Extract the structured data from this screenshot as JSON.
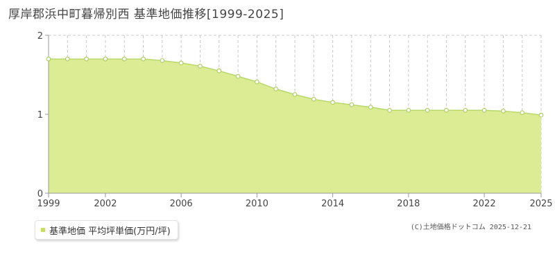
{
  "chart_data": {
    "type": "area",
    "title": "厚岸郡浜中町暮帰別西 基準地価推移[1999-2025]",
    "x": [
      1999,
      2000,
      2001,
      2002,
      2003,
      2004,
      2005,
      2006,
      2007,
      2008,
      2009,
      2010,
      2011,
      2012,
      2013,
      2014,
      2015,
      2016,
      2017,
      2018,
      2019,
      2020,
      2021,
      2022,
      2023,
      2024,
      2025
    ],
    "x_tick_labels": [
      "1999",
      "2002",
      "2006",
      "2010",
      "2014",
      "2018",
      "2022",
      "2025"
    ],
    "y_tick_labels": [
      "0",
      "1",
      "2"
    ],
    "xlim": [
      1999,
      2025
    ],
    "ylim": [
      0,
      2
    ],
    "grid": true,
    "legend_position": "bottom-left",
    "series": [
      {
        "name": "基準地価 平均坪単価(万円/坪)",
        "values": [
          1.7,
          1.7,
          1.7,
          1.7,
          1.7,
          1.7,
          1.68,
          1.65,
          1.61,
          1.55,
          1.48,
          1.41,
          1.32,
          1.25,
          1.19,
          1.15,
          1.12,
          1.09,
          1.05,
          1.05,
          1.05,
          1.05,
          1.05,
          1.05,
          1.04,
          1.02,
          0.99
        ]
      }
    ]
  },
  "colors": {
    "fill": "#dcec94",
    "line": "#b8d86a",
    "marker_stroke": "#b0d060",
    "marker_fill": "#ffffff",
    "legend_marker": "#c6e05a",
    "grid": "#c8c8c8",
    "axis": "#999999"
  },
  "copyright": "(C)土地価格ドットコム 2025-12-21"
}
